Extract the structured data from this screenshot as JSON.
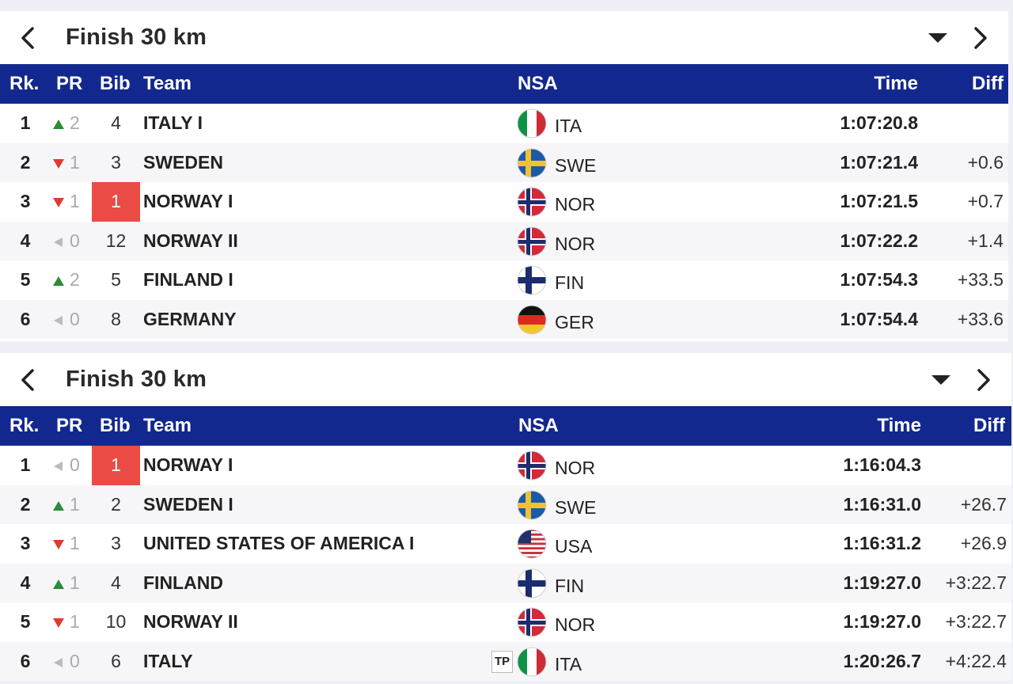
{
  "columns": {
    "rk": "Rk.",
    "pr": "PR",
    "bib": "Bib",
    "team": "Team",
    "nsa": "NSA",
    "time": "Time",
    "diff": "Diff"
  },
  "panels": [
    {
      "title": "Finish 30 km",
      "rows": [
        {
          "rk": "1",
          "pr_dir": "up",
          "pr": "2",
          "bib": "4",
          "team": "ITALY I",
          "nsa": "ITA",
          "time": "1:07:20.8",
          "diff": "",
          "bib_hl": false
        },
        {
          "rk": "2",
          "pr_dir": "down",
          "pr": "1",
          "bib": "3",
          "team": "SWEDEN",
          "nsa": "SWE",
          "time": "1:07:21.4",
          "diff": "+0.6",
          "bib_hl": false
        },
        {
          "rk": "3",
          "pr_dir": "down",
          "pr": "1",
          "bib": "1",
          "team": "NORWAY I",
          "nsa": "NOR",
          "time": "1:07:21.5",
          "diff": "+0.7",
          "bib_hl": true
        },
        {
          "rk": "4",
          "pr_dir": "same",
          "pr": "0",
          "bib": "12",
          "team": "NORWAY II",
          "nsa": "NOR",
          "time": "1:07:22.2",
          "diff": "+1.4",
          "bib_hl": false
        },
        {
          "rk": "5",
          "pr_dir": "up",
          "pr": "2",
          "bib": "5",
          "team": "FINLAND I",
          "nsa": "FIN",
          "time": "1:07:54.3",
          "diff": "+33.5",
          "bib_hl": false
        },
        {
          "rk": "6",
          "pr_dir": "same",
          "pr": "0",
          "bib": "8",
          "team": "GERMANY",
          "nsa": "GER",
          "time": "1:07:54.4",
          "diff": "+33.6",
          "bib_hl": false
        }
      ]
    },
    {
      "title": "Finish 30 km",
      "rows": [
        {
          "rk": "1",
          "pr_dir": "same",
          "pr": "0",
          "bib": "1",
          "team": "NORWAY I",
          "nsa": "NOR",
          "time": "1:16:04.3",
          "diff": "",
          "bib_hl": true
        },
        {
          "rk": "2",
          "pr_dir": "up",
          "pr": "1",
          "bib": "2",
          "team": "SWEDEN I",
          "nsa": "SWE",
          "time": "1:16:31.0",
          "diff": "+26.7",
          "bib_hl": false
        },
        {
          "rk": "3",
          "pr_dir": "down",
          "pr": "1",
          "bib": "3",
          "team": "UNITED STATES OF AMERICA I",
          "nsa": "USA",
          "time": "1:16:31.2",
          "diff": "+26.9",
          "bib_hl": false
        },
        {
          "rk": "4",
          "pr_dir": "up",
          "pr": "1",
          "bib": "4",
          "team": "FINLAND",
          "nsa": "FIN",
          "time": "1:19:27.0",
          "diff": "+3:22.7",
          "bib_hl": false
        },
        {
          "rk": "5",
          "pr_dir": "down",
          "pr": "1",
          "bib": "10",
          "team": "NORWAY II",
          "nsa": "NOR",
          "time": "1:19:27.0",
          "diff": "+3:22.7",
          "bib_hl": false
        },
        {
          "rk": "6",
          "pr_dir": "same",
          "pr": "0",
          "bib": "6",
          "team": "ITALY",
          "nsa": "ITA",
          "time": "1:20:26.7",
          "diff": "+4:22.4",
          "bib_hl": false,
          "tag": "TP"
        }
      ]
    }
  ],
  "colors": {
    "header_bg": "#13288e",
    "highlight": "#ea4c45",
    "up": "#2e8b3a",
    "down": "#e03b2f",
    "same": "#bbbbbb"
  },
  "icons": {
    "back": "chevron-left-icon",
    "next": "chevron-right-icon",
    "menu": "caret-down-icon"
  }
}
